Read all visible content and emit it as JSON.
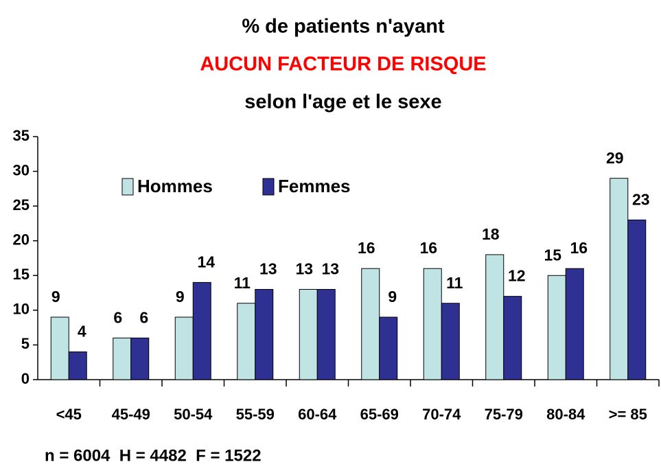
{
  "chart_data": {
    "type": "bar",
    "title_lines": [
      "% de patients n'ayant",
      "AUCUN FACTEUR DE RISQUE",
      "selon l'age et le sexe"
    ],
    "title_colors": [
      "#000000",
      "#ff0000",
      "#000000"
    ],
    "categories": [
      "<45",
      "45-49",
      "50-54",
      "55-59",
      "60-64",
      "65-69",
      "70-74",
      "75-79",
      "80-84",
      ">= 85"
    ],
    "series": [
      {
        "name": "Hommes",
        "color": "#c0e4e4",
        "values": [
          9,
          6,
          9,
          11,
          13,
          16,
          16,
          18,
          15,
          29
        ]
      },
      {
        "name": "Femmes",
        "color": "#2e3192",
        "values": [
          4,
          6,
          14,
          13,
          13,
          9,
          11,
          12,
          16,
          23
        ]
      }
    ],
    "ylim": [
      0,
      35
    ],
    "yticks": [
      0,
      5,
      10,
      15,
      20,
      25,
      30,
      35
    ],
    "grid": false,
    "legend": "top-left",
    "annotation": "n = 6004  H = 4482  F = 1522"
  }
}
